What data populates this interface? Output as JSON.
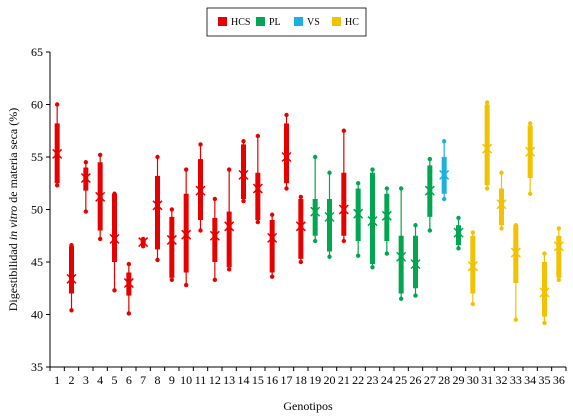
{
  "chart_data": {
    "type": "scatter",
    "title": "",
    "xlabel": "Genotipos",
    "ylabel_parts": [
      {
        "text": "Digestibilidad ",
        "italic": false
      },
      {
        "text": "in vitro",
        "italic": true
      },
      {
        "text": " de materia seca (%)",
        "italic": false
      }
    ],
    "ylim": [
      35,
      65
    ],
    "yticks": [
      35,
      40,
      45,
      50,
      55,
      60,
      65
    ],
    "grid": false,
    "legend_position": "top-center",
    "legend": [
      {
        "name": "HCS",
        "color": "#e60000"
      },
      {
        "name": "PL",
        "color": "#00a650"
      },
      {
        "name": "VS",
        "color": "#1ab0e0"
      },
      {
        "name": "HC",
        "color": "#f2c200"
      }
    ],
    "genotypes": [
      {
        "x": 1,
        "group": "HCS",
        "min": 52.3,
        "q1": 52.5,
        "q3": 58.2,
        "max": 60.0,
        "mean": 55.3
      },
      {
        "x": 2,
        "group": "HCS",
        "min": 40.4,
        "q1": 42.0,
        "q3": 46.5,
        "max": 46.6,
        "mean": 43.4
      },
      {
        "x": 3,
        "group": "HCS",
        "min": 49.8,
        "q1": 51.8,
        "q3": 54.0,
        "max": 54.5,
        "mean": 53.0
      },
      {
        "x": 4,
        "group": "HCS",
        "min": 47.2,
        "q1": 48.0,
        "q3": 54.5,
        "max": 55.2,
        "mean": 51.2
      },
      {
        "x": 5,
        "group": "HCS",
        "min": 42.3,
        "q1": 45.0,
        "q3": 51.5,
        "max": 51.5,
        "mean": 47.2
      },
      {
        "x": 6,
        "group": "HCS",
        "min": 40.1,
        "q1": 41.8,
        "q3": 44.0,
        "max": 44.8,
        "mean": 43.0
      },
      {
        "x": 7,
        "group": "HCS",
        "min": 46.5,
        "q1": 46.6,
        "q3": 47.1,
        "max": 47.2,
        "mean": 46.9
      },
      {
        "x": 8,
        "group": "HCS",
        "min": 45.2,
        "q1": 46.2,
        "q3": 53.2,
        "max": 55.0,
        "mean": 50.4
      },
      {
        "x": 9,
        "group": "HCS",
        "min": 43.3,
        "q1": 43.5,
        "q3": 49.3,
        "max": 50.0,
        "mean": 47.1
      },
      {
        "x": 10,
        "group": "HCS",
        "min": 42.8,
        "q1": 44.0,
        "q3": 51.5,
        "max": 53.8,
        "mean": 47.6
      },
      {
        "x": 11,
        "group": "HCS",
        "min": 48.0,
        "q1": 49.0,
        "q3": 54.8,
        "max": 56.2,
        "mean": 51.8
      },
      {
        "x": 12,
        "group": "HCS",
        "min": 43.3,
        "q1": 45.0,
        "q3": 49.2,
        "max": 51.0,
        "mean": 47.5
      },
      {
        "x": 13,
        "group": "HCS",
        "min": 44.3,
        "q1": 44.5,
        "q3": 49.8,
        "max": 53.8,
        "mean": 48.4
      },
      {
        "x": 14,
        "group": "HCS",
        "min": 50.8,
        "q1": 51.0,
        "q3": 56.2,
        "max": 56.5,
        "mean": 53.3
      },
      {
        "x": 15,
        "group": "HCS",
        "min": 48.8,
        "q1": 49.0,
        "q3": 53.5,
        "max": 57.0,
        "mean": 52.0
      },
      {
        "x": 16,
        "group": "HCS",
        "min": 43.6,
        "q1": 44.0,
        "q3": 49.0,
        "max": 49.5,
        "mean": 47.3
      },
      {
        "x": 17,
        "group": "HCS",
        "min": 52.0,
        "q1": 52.5,
        "q3": 58.2,
        "max": 59.0,
        "mean": 55.0
      },
      {
        "x": 18,
        "group": "HCS",
        "min": 45.0,
        "q1": 45.3,
        "q3": 51.0,
        "max": 51.2,
        "mean": 48.4
      },
      {
        "x": 19,
        "group": "PL",
        "min": 47.0,
        "q1": 47.5,
        "q3": 51.0,
        "max": 55.0,
        "mean": 49.8
      },
      {
        "x": 20,
        "group": "PL",
        "min": 45.5,
        "q1": 46.0,
        "q3": 51.0,
        "max": 53.5,
        "mean": 49.3
      },
      {
        "x": 21,
        "group": "HCS",
        "min": 47.0,
        "q1": 47.5,
        "q3": 53.5,
        "max": 57.5,
        "mean": 50.0
      },
      {
        "x": 22,
        "group": "PL",
        "min": 45.6,
        "q1": 47.0,
        "q3": 52.0,
        "max": 52.5,
        "mean": 49.6
      },
      {
        "x": 23,
        "group": "PL",
        "min": 44.5,
        "q1": 44.8,
        "q3": 53.5,
        "max": 53.8,
        "mean": 48.9
      },
      {
        "x": 24,
        "group": "PL",
        "min": 45.8,
        "q1": 47.0,
        "q3": 51.5,
        "max": 52.0,
        "mean": 49.4
      },
      {
        "x": 25,
        "group": "PL",
        "min": 41.5,
        "q1": 42.0,
        "q3": 47.5,
        "max": 52.0,
        "mean": 45.5
      },
      {
        "x": 26,
        "group": "PL",
        "min": 41.8,
        "q1": 42.5,
        "q3": 47.5,
        "max": 48.5,
        "mean": 44.8
      },
      {
        "x": 27,
        "group": "PL",
        "min": 48.0,
        "q1": 49.3,
        "q3": 54.2,
        "max": 54.8,
        "mean": 51.8
      },
      {
        "x": 28,
        "group": "VS",
        "min": 51.0,
        "q1": 51.5,
        "q3": 55.0,
        "max": 56.5,
        "mean": 53.3
      },
      {
        "x": 29,
        "group": "PL",
        "min": 46.3,
        "q1": 46.6,
        "q3": 48.5,
        "max": 49.2,
        "mean": 47.8
      },
      {
        "x": 30,
        "group": "HC",
        "min": 41.0,
        "q1": 42.0,
        "q3": 47.5,
        "max": 47.8,
        "mean": 44.6
      },
      {
        "x": 31,
        "group": "HC",
        "min": 52.0,
        "q1": 52.3,
        "q3": 60.0,
        "max": 60.2,
        "mean": 55.8
      },
      {
        "x": 32,
        "group": "HC",
        "min": 48.2,
        "q1": 48.5,
        "q3": 52.0,
        "max": 53.5,
        "mean": 50.5
      },
      {
        "x": 33,
        "group": "HC",
        "min": 39.5,
        "q1": 43.0,
        "q3": 48.5,
        "max": 48.5,
        "mean": 45.9
      },
      {
        "x": 34,
        "group": "HC",
        "min": 51.5,
        "q1": 53.0,
        "q3": 58.0,
        "max": 58.2,
        "mean": 55.5
      },
      {
        "x": 35,
        "group": "HC",
        "min": 39.2,
        "q1": 39.8,
        "q3": 45.0,
        "max": 45.8,
        "mean": 42.1
      },
      {
        "x": 36,
        "group": "HC",
        "min": 43.3,
        "q1": 43.5,
        "q3": 47.5,
        "max": 48.2,
        "mean": 46.5
      }
    ]
  }
}
